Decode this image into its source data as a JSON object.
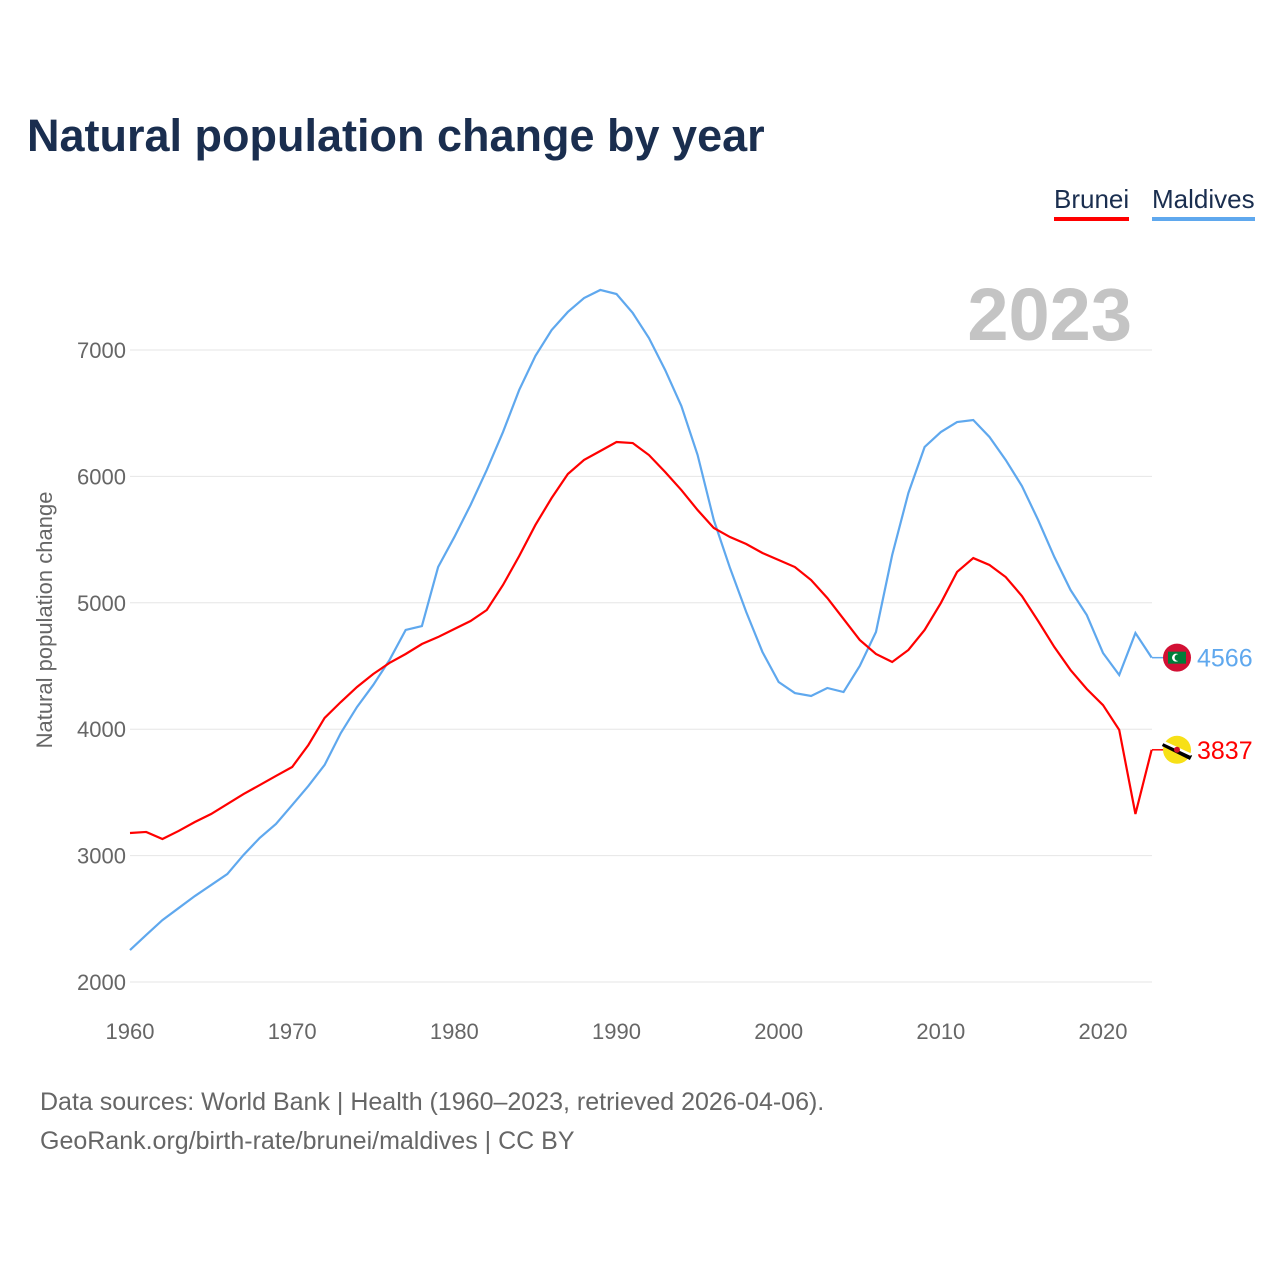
{
  "chart_data": {
    "type": "line",
    "title": "Natural population change by year",
    "xlabel": "",
    "ylabel": "Natural population change",
    "xlim": [
      1960,
      2023
    ],
    "ylim": [
      2000,
      7500
    ],
    "x_ticks": [
      "1960",
      "1970",
      "1980",
      "1990",
      "2000",
      "2010",
      "2020"
    ],
    "y_ticks": [
      "2000",
      "3000",
      "4000",
      "5000",
      "6000",
      "7000"
    ],
    "grid": true,
    "year_label": "2023",
    "legend": [
      "Brunei",
      "Maldives"
    ],
    "legend_placement": "top-right",
    "x": [
      1960,
      1961,
      1962,
      1963,
      1964,
      1965,
      1966,
      1967,
      1968,
      1969,
      1970,
      1971,
      1972,
      1973,
      1974,
      1975,
      1976,
      1977,
      1978,
      1979,
      1980,
      1981,
      1982,
      1983,
      1984,
      1985,
      1986,
      1987,
      1988,
      1989,
      1990,
      1991,
      1992,
      1993,
      1994,
      1995,
      1996,
      1997,
      1998,
      1999,
      2000,
      2001,
      2002,
      2003,
      2004,
      2005,
      2006,
      2007,
      2008,
      2009,
      2010,
      2011,
      2012,
      2013,
      2014,
      2015,
      2016,
      2017,
      2018,
      2019,
      2020,
      2021,
      2022,
      2023
    ],
    "series": [
      {
        "name": "Brunei",
        "color": "#ff0000",
        "end_label": "3837",
        "values": [
          3179,
          3187,
          3131,
          3195,
          3266,
          3329,
          3408,
          3487,
          3558,
          3630,
          3701,
          3875,
          4089,
          4215,
          4334,
          4437,
          4524,
          4595,
          4674,
          4729,
          4793,
          4856,
          4943,
          5141,
          5370,
          5616,
          5829,
          6019,
          6130,
          6201,
          6272,
          6264,
          6169,
          6035,
          5892,
          5734,
          5592,
          5520,
          5465,
          5394,
          5339,
          5283,
          5180,
          5038,
          4872,
          4706,
          4595,
          4532,
          4627,
          4785,
          4998,
          5244,
          5354,
          5299,
          5204,
          5054,
          4856,
          4650,
          4468,
          4318,
          4191,
          3994,
          3329,
          3837
        ]
      },
      {
        "name": "Maldives",
        "color": "#5fa8ee",
        "end_label": "4566",
        "values": [
          2253,
          2372,
          2490,
          2585,
          2680,
          2767,
          2854,
          3005,
          3140,
          3250,
          3400,
          3551,
          3717,
          3970,
          4176,
          4350,
          4547,
          4785,
          4816,
          5283,
          5520,
          5774,
          6051,
          6351,
          6684,
          6953,
          7158,
          7301,
          7411,
          7475,
          7443,
          7293,
          7095,
          6842,
          6557,
          6170,
          5655,
          5275,
          4927,
          4611,
          4373,
          4286,
          4263,
          4326,
          4294,
          4500,
          4769,
          5378,
          5869,
          6233,
          6351,
          6430,
          6446,
          6312,
          6130,
          5924,
          5655,
          5362,
          5101,
          4903,
          4603,
          4429,
          4761,
          4566
        ]
      }
    ]
  },
  "footer": {
    "line1": "Data sources: World Bank | Health (1960–2023, retrieved 2026-04-06).",
    "line2": "GeoRank.org/birth-rate/brunei/maldives | CC BY"
  }
}
